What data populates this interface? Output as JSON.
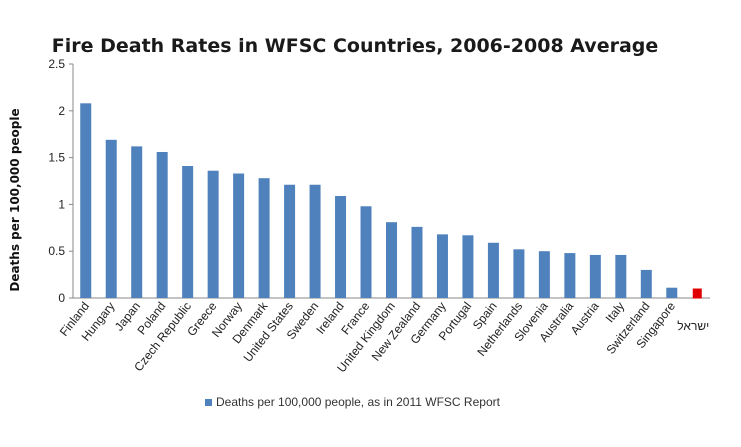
{
  "chart_data": {
    "type": "bar",
    "title": "Fire Death Rates in WFSC Countries, 2006-2008 Average",
    "ylabel": "Deaths per 100,000 people",
    "ylim": [
      0,
      2.5
    ],
    "yticks": [
      "0",
      "0.5",
      "1",
      "1.5",
      "2",
      "2.5"
    ],
    "grid": false,
    "legend_position": "bottom",
    "categories": [
      "Finland",
      "Hungary",
      "Japan",
      "Poland",
      "Czech Republic",
      "Greece",
      "Norway",
      "Denmark",
      "United States",
      "Sweden",
      "Ireland",
      "France",
      "United Kingdom",
      "New Zealand",
      "Germany",
      "Portugal",
      "Spain",
      "Netherlands",
      "Slovenia",
      "Australia",
      "Austria",
      "Italy",
      "Switzerland",
      "Singapore",
      "ישראל"
    ],
    "series": [
      {
        "name": "Deaths per 100,000 people, as in 2011 WFSC Report",
        "color": "#4f81bd",
        "values": [
          2.08,
          1.69,
          1.62,
          1.56,
          1.41,
          1.36,
          1.33,
          1.28,
          1.21,
          1.21,
          1.09,
          0.98,
          0.81,
          0.76,
          0.68,
          0.67,
          0.59,
          0.52,
          0.5,
          0.48,
          0.46,
          0.46,
          0.3,
          0.11,
          0.08
        ]
      }
    ],
    "highlight": {
      "category": "ישראל",
      "color": "#e00000"
    }
  }
}
